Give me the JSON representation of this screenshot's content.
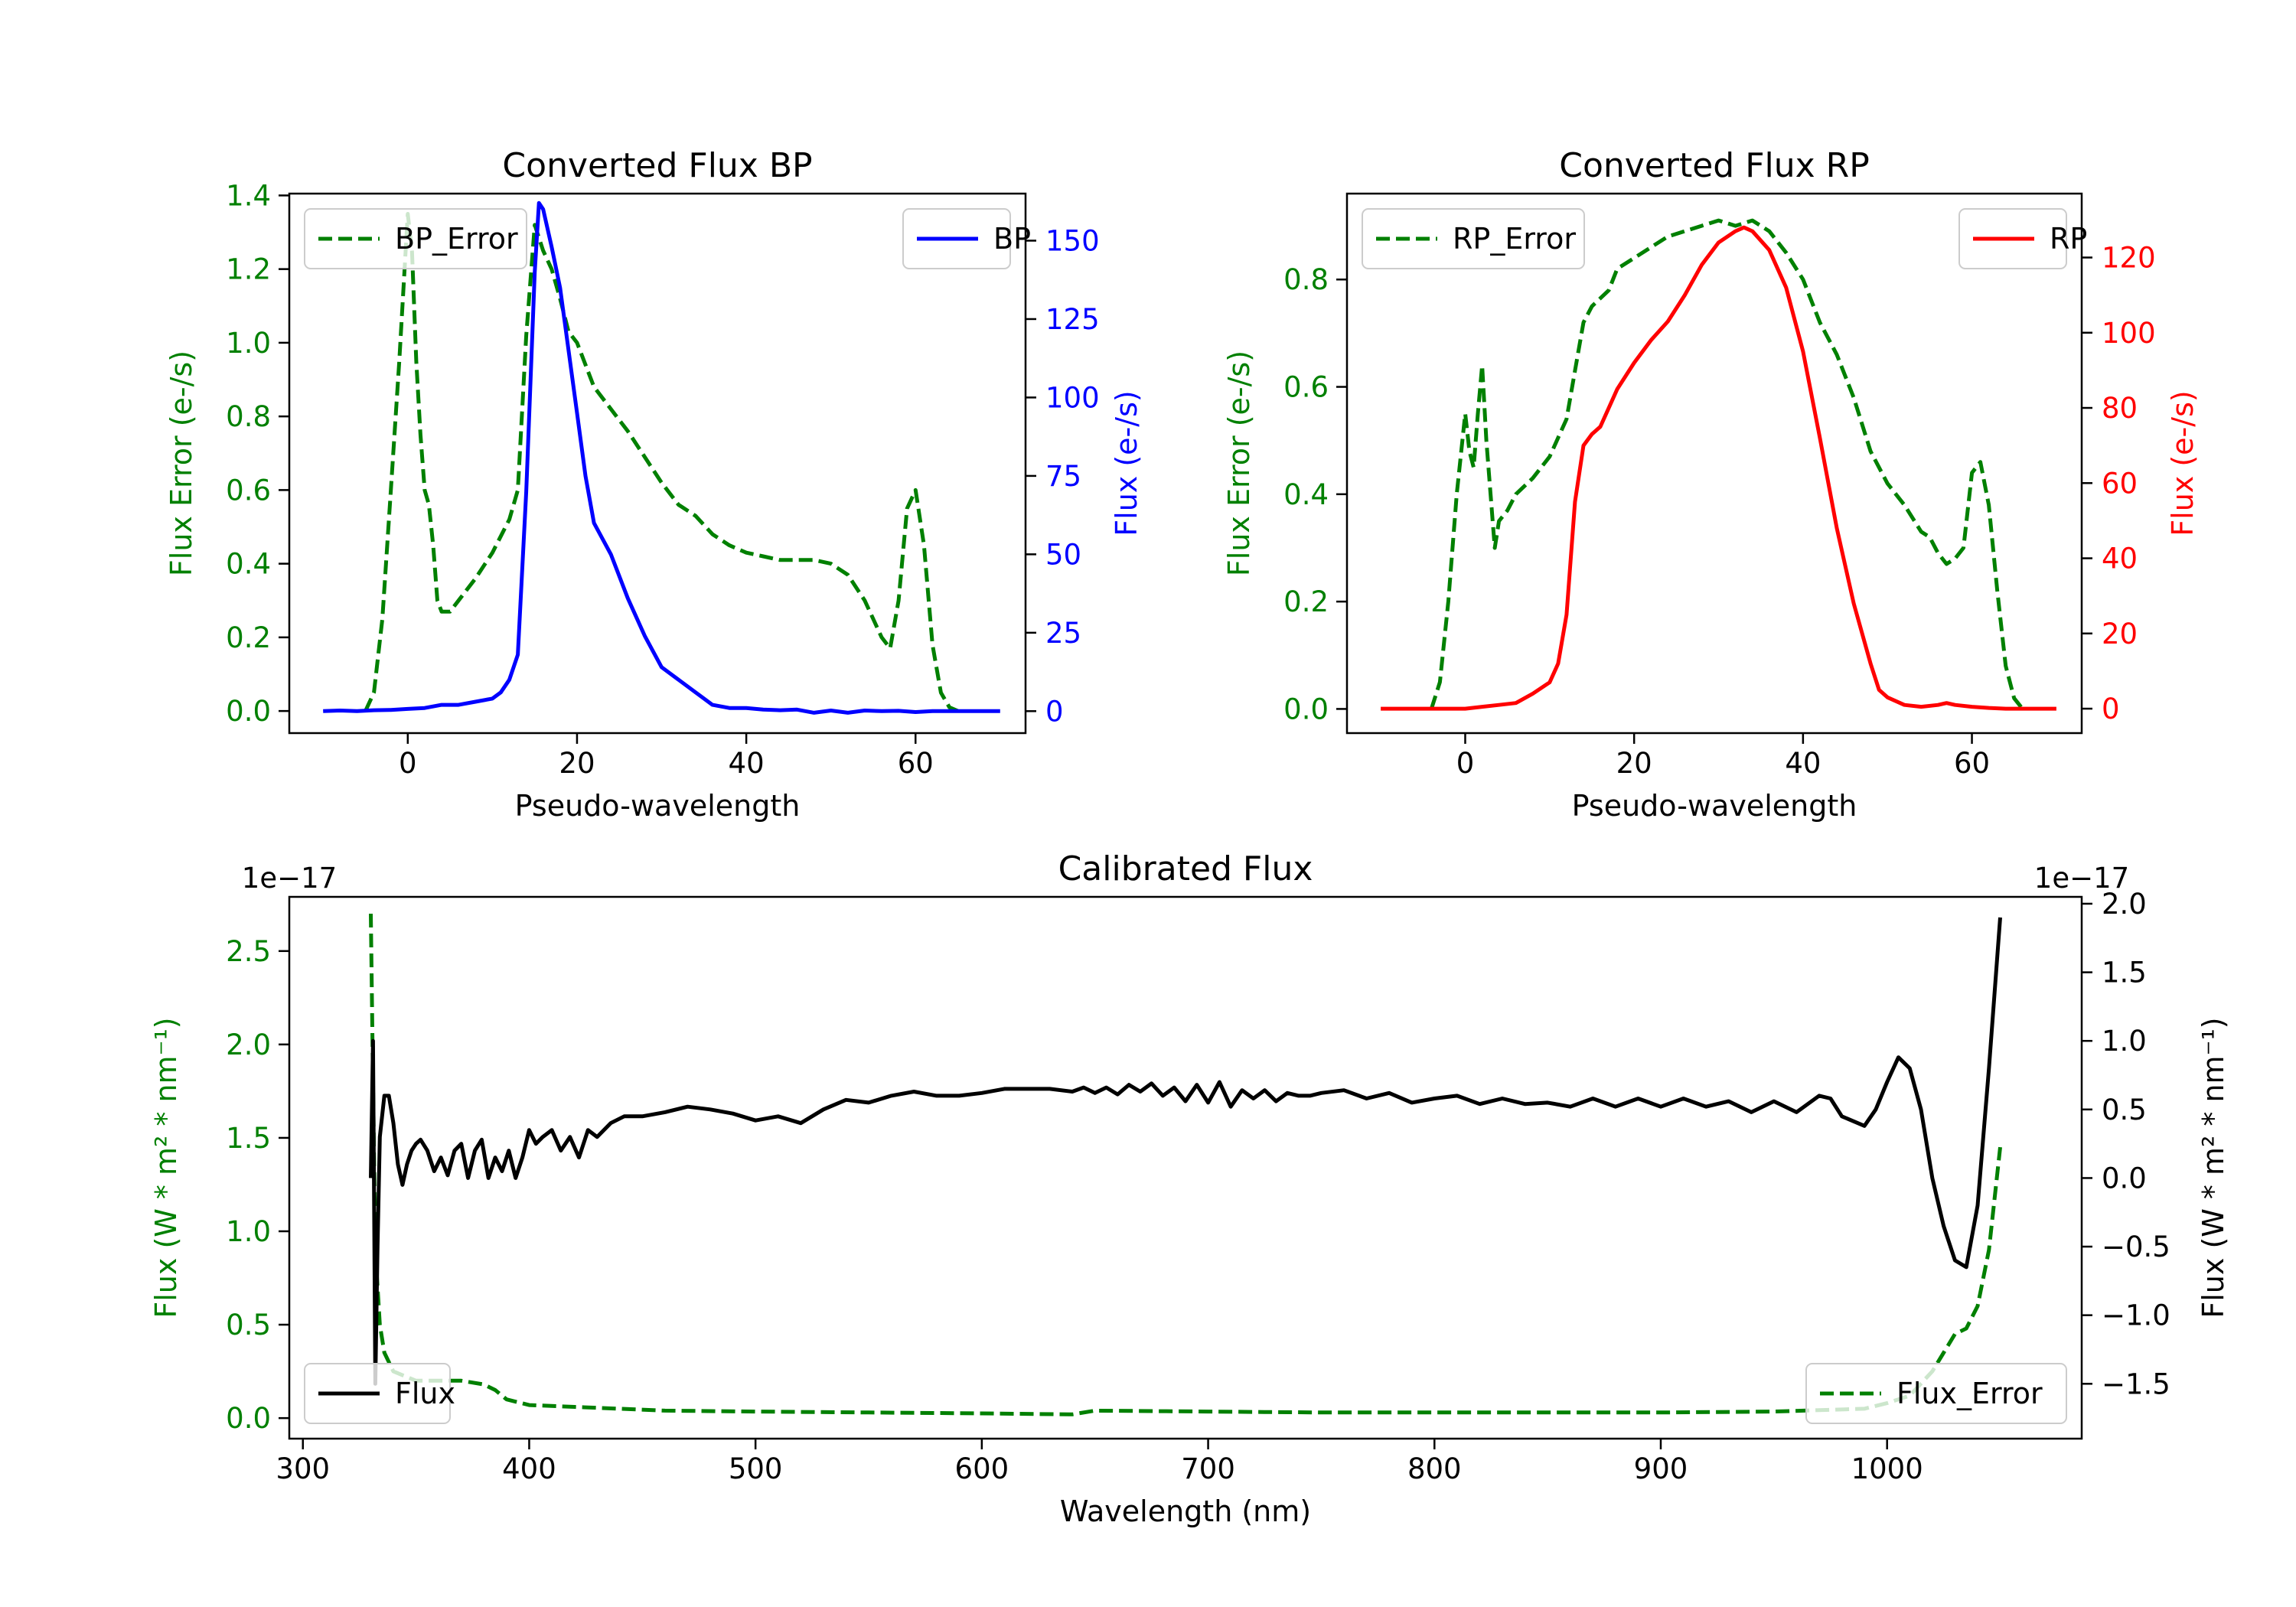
{
  "chart_data": [
    {
      "id": "bp",
      "type": "line",
      "title": "Converted Flux BP",
      "xlabel": "Pseudo-wavelength",
      "xlim": [
        -14,
        73
      ],
      "xticks": [
        0,
        20,
        40,
        60
      ],
      "left_axis": {
        "label": "Flux Error (e-/s)",
        "color": "#008000",
        "ylim": [
          -0.06,
          1.405
        ],
        "ticks": [
          0.0,
          0.2,
          0.4,
          0.6,
          0.8,
          1.0,
          1.2,
          1.4
        ],
        "tick_labels": [
          "0.0",
          "0.2",
          "0.4",
          "0.6",
          "0.8",
          "1.0",
          "1.2",
          "1.4"
        ]
      },
      "right_axis": {
        "label": "Flux (e-/s)",
        "color": "#0000ff",
        "ylim": [
          -7,
          165
        ],
        "ticks": [
          0,
          25,
          50,
          75,
          100,
          125,
          150
        ],
        "tick_labels": [
          "0",
          "25",
          "50",
          "75",
          "100",
          "125",
          "150"
        ]
      },
      "series": [
        {
          "name": "BP_Error",
          "axis": "left",
          "color": "#008000",
          "style": "dashed",
          "x": [
            -5,
            -4,
            -3,
            -2,
            -1,
            0,
            0.5,
            1,
            1.5,
            2,
            2.5,
            3,
            3.5,
            4,
            4.5,
            5,
            6,
            8,
            10,
            12,
            13,
            14,
            15,
            16,
            17,
            18,
            19,
            20,
            22,
            24,
            26,
            28,
            30,
            32,
            34,
            36,
            38,
            40,
            42,
            44,
            46,
            48,
            50,
            52,
            54,
            56,
            57,
            58,
            59,
            60,
            61,
            62,
            63,
            64,
            65
          ],
          "values": [
            0,
            0.05,
            0.25,
            0.6,
            0.95,
            1.35,
            1.25,
            0.95,
            0.75,
            0.6,
            0.56,
            0.45,
            0.3,
            0.27,
            0.27,
            0.27,
            0.3,
            0.36,
            0.43,
            0.52,
            0.6,
            1.02,
            1.32,
            1.25,
            1.2,
            1.12,
            1.03,
            1.0,
            0.88,
            0.82,
            0.76,
            0.69,
            0.62,
            0.56,
            0.53,
            0.48,
            0.45,
            0.43,
            0.42,
            0.41,
            0.41,
            0.41,
            0.4,
            0.37,
            0.3,
            0.2,
            0.17,
            0.3,
            0.55,
            0.6,
            0.45,
            0.18,
            0.05,
            0.01,
            0
          ]
        },
        {
          "name": "BP",
          "axis": "right",
          "color": "#0000ff",
          "style": "solid",
          "x": [
            -10,
            -8,
            -6,
            -4,
            -2,
            0,
            2,
            4,
            6,
            8,
            10,
            11,
            12,
            13,
            14,
            15,
            15.5,
            16,
            17,
            18,
            19,
            20,
            21,
            22,
            24,
            26,
            28,
            30,
            32,
            34,
            35,
            36,
            38,
            40,
            42,
            44,
            46,
            48,
            50,
            52,
            54,
            56,
            58,
            60,
            62,
            64,
            66,
            68,
            70
          ],
          "values": [
            0,
            0.2,
            0,
            0.3,
            0.4,
            0.7,
            1,
            2,
            2,
            3,
            4,
            6,
            10,
            18,
            70,
            140,
            162,
            160,
            148,
            135,
            115,
            95,
            75,
            60,
            50,
            36,
            24,
            14,
            10,
            6,
            4,
            2,
            1,
            1,
            0.5,
            0.3,
            0.5,
            -0.5,
            0.2,
            -0.5,
            0.2,
            0,
            0.1,
            -0.3,
            0,
            0,
            0,
            0,
            0
          ]
        }
      ],
      "legends": [
        {
          "label": "BP_Error",
          "placement": "upper-left"
        },
        {
          "label": "BP",
          "placement": "upper-right"
        }
      ]
    },
    {
      "id": "rp",
      "type": "line",
      "title": "Converted Flux RP",
      "xlabel": "Pseudo-wavelength",
      "xlim": [
        -14,
        73
      ],
      "xticks": [
        0,
        20,
        40,
        60
      ],
      "left_axis": {
        "label": "Flux Error (e-/s)",
        "color": "#008000",
        "ylim": [
          -0.045,
          0.96
        ],
        "ticks": [
          0.0,
          0.2,
          0.4,
          0.6,
          0.8
        ],
        "tick_labels": [
          "0.0",
          "0.2",
          "0.4",
          "0.6",
          "0.8"
        ]
      },
      "right_axis": {
        "label": "Flux (e-/s)",
        "color": "#ff0000",
        "ylim": [
          -6.5,
          137
        ],
        "ticks": [
          0,
          20,
          40,
          60,
          80,
          100,
          120
        ],
        "tick_labels": [
          "0",
          "20",
          "40",
          "60",
          "80",
          "100",
          "120"
        ]
      },
      "series": [
        {
          "name": "RP_Error",
          "axis": "left",
          "color": "#008000",
          "style": "dashed",
          "x": [
            -4,
            -3,
            -2,
            -1,
            0,
            0.5,
            1,
            1.5,
            2,
            2.5,
            3,
            3.5,
            4,
            5,
            6,
            8,
            10,
            12,
            13,
            14,
            15,
            17,
            18,
            20,
            22,
            24,
            26,
            28,
            30,
            32,
            34,
            36,
            38,
            40,
            42,
            44,
            46,
            48,
            50,
            52,
            54,
            55,
            56,
            57,
            58,
            59,
            60,
            61,
            62,
            63,
            64,
            65,
            66
          ],
          "values": [
            0,
            0.05,
            0.2,
            0.4,
            0.55,
            0.48,
            0.45,
            0.55,
            0.64,
            0.5,
            0.4,
            0.3,
            0.35,
            0.37,
            0.4,
            0.43,
            0.47,
            0.54,
            0.63,
            0.72,
            0.75,
            0.78,
            0.82,
            0.84,
            0.86,
            0.88,
            0.89,
            0.9,
            0.91,
            0.9,
            0.91,
            0.89,
            0.85,
            0.8,
            0.72,
            0.66,
            0.58,
            0.48,
            0.42,
            0.38,
            0.33,
            0.32,
            0.29,
            0.27,
            0.28,
            0.3,
            0.44,
            0.46,
            0.38,
            0.22,
            0.08,
            0.02,
            0
          ]
        },
        {
          "name": "RP",
          "axis": "right",
          "color": "#ff0000",
          "style": "solid",
          "x": [
            -10,
            -8,
            -6,
            -4,
            -2,
            0,
            2,
            4,
            6,
            8,
            10,
            11,
            12,
            13,
            14,
            15,
            16,
            17,
            18,
            20,
            22,
            24,
            26,
            28,
            30,
            32,
            33,
            34,
            36,
            38,
            40,
            42,
            44,
            46,
            48,
            49,
            50,
            52,
            54,
            56,
            57,
            58,
            60,
            62,
            64,
            66,
            68,
            70
          ],
          "values": [
            0,
            0,
            0,
            0,
            0,
            0,
            0.5,
            1,
            1.5,
            4,
            7,
            12,
            25,
            55,
            70,
            73,
            75,
            80,
            85,
            92,
            98,
            103,
            110,
            118,
            124,
            127,
            128,
            127,
            122,
            112,
            95,
            72,
            48,
            28,
            12,
            5,
            3,
            1,
            0.5,
            1,
            1.5,
            1,
            0.5,
            0.2,
            0,
            0,
            0,
            0
          ]
        }
      ],
      "legends": [
        {
          "label": "RP_Error",
          "placement": "upper-left"
        },
        {
          "label": "RP",
          "placement": "upper-right"
        }
      ]
    },
    {
      "id": "cal",
      "type": "line",
      "title": "Calibrated Flux",
      "xlabel": "Wavelength (nm)",
      "xlim": [
        294,
        1086
      ],
      "xticks": [
        300,
        400,
        500,
        600,
        700,
        800,
        900,
        1000
      ],
      "left_axis": {
        "label": "Flux (W * m² * nm⁻¹)",
        "color": "#008000",
        "ylim": [
          -0.11,
          2.79
        ],
        "ticks": [
          0.0,
          0.5,
          1.0,
          1.5,
          2.0,
          2.5
        ],
        "tick_labels": [
          "0.0",
          "0.5",
          "1.0",
          "1.5",
          "2.0",
          "2.5"
        ],
        "offset_text": "1e−17"
      },
      "right_axis": {
        "label": "Flux (W * m² * nm⁻¹)",
        "color": "#000000",
        "ylim": [
          -1.9,
          2.05
        ],
        "ticks": [
          -1.5,
          -1.0,
          -0.5,
          0.0,
          0.5,
          1.0,
          1.5,
          2.0
        ],
        "tick_labels": [
          "−1.5",
          "−1.0",
          "−0.5",
          "0.0",
          "0.5",
          "1.0",
          "1.5",
          "2.0"
        ],
        "offset_text": "1e−17"
      },
      "series": [
        {
          "name": "Flux_Error",
          "axis": "left",
          "color": "#008000",
          "style": "dashed",
          "x": [
            330,
            331,
            332,
            334,
            336,
            340,
            350,
            360,
            370,
            380,
            385,
            390,
            400,
            420,
            440,
            460,
            500,
            550,
            600,
            640,
            650,
            700,
            750,
            800,
            850,
            900,
            950,
            990,
            1000,
            1010,
            1020,
            1025,
            1030,
            1035,
            1040,
            1045,
            1050
          ],
          "values": [
            2.7,
            1.8,
            0.9,
            0.5,
            0.35,
            0.25,
            0.2,
            0.2,
            0.2,
            0.18,
            0.15,
            0.1,
            0.07,
            0.06,
            0.05,
            0.04,
            0.035,
            0.03,
            0.025,
            0.02,
            0.04,
            0.035,
            0.03,
            0.03,
            0.03,
            0.03,
            0.035,
            0.05,
            0.08,
            0.12,
            0.25,
            0.35,
            0.45,
            0.48,
            0.6,
            0.9,
            1.45
          ]
        },
        {
          "name": "Flux",
          "axis": "right",
          "color": "#000000",
          "style": "solid",
          "x": [
            330,
            331,
            332,
            333,
            334,
            336,
            338,
            340,
            342,
            344,
            346,
            348,
            350,
            352,
            355,
            358,
            361,
            364,
            367,
            370,
            373,
            376,
            379,
            382,
            385,
            388,
            391,
            394,
            397,
            400,
            403,
            406,
            410,
            414,
            418,
            422,
            426,
            430,
            436,
            442,
            450,
            460,
            470,
            480,
            490,
            500,
            510,
            520,
            530,
            540,
            550,
            560,
            570,
            580,
            590,
            600,
            610,
            620,
            630,
            640,
            645,
            650,
            655,
            660,
            665,
            670,
            675,
            680,
            685,
            690,
            695,
            700,
            705,
            710,
            715,
            720,
            725,
            730,
            735,
            740,
            745,
            750,
            760,
            770,
            780,
            790,
            800,
            810,
            820,
            830,
            840,
            850,
            860,
            870,
            880,
            890,
            900,
            910,
            920,
            930,
            940,
            950,
            960,
            970,
            975,
            980,
            990,
            995,
            1000,
            1005,
            1010,
            1015,
            1020,
            1025,
            1030,
            1035,
            1040,
            1045,
            1050
          ],
          "values": [
            0.0,
            1.0,
            -1.5,
            -0.5,
            0.3,
            0.6,
            0.6,
            0.4,
            0.1,
            -0.05,
            0.1,
            0.2,
            0.25,
            0.28,
            0.2,
            0.05,
            0.15,
            0.02,
            0.2,
            0.25,
            0.0,
            0.2,
            0.28,
            0.0,
            0.15,
            0.05,
            0.2,
            0.0,
            0.15,
            0.35,
            0.25,
            0.3,
            0.35,
            0.2,
            0.3,
            0.15,
            0.35,
            0.3,
            0.4,
            0.45,
            0.45,
            0.48,
            0.52,
            0.5,
            0.47,
            0.42,
            0.45,
            0.4,
            0.5,
            0.57,
            0.55,
            0.6,
            0.63,
            0.6,
            0.6,
            0.62,
            0.65,
            0.65,
            0.65,
            0.63,
            0.66,
            0.62,
            0.66,
            0.61,
            0.68,
            0.63,
            0.69,
            0.6,
            0.66,
            0.56,
            0.68,
            0.55,
            0.7,
            0.52,
            0.64,
            0.58,
            0.64,
            0.56,
            0.62,
            0.6,
            0.6,
            0.62,
            0.64,
            0.58,
            0.62,
            0.55,
            0.58,
            0.6,
            0.54,
            0.58,
            0.54,
            0.55,
            0.52,
            0.58,
            0.52,
            0.58,
            0.52,
            0.58,
            0.52,
            0.56,
            0.48,
            0.56,
            0.48,
            0.6,
            0.58,
            0.45,
            0.38,
            0.5,
            0.7,
            0.88,
            0.8,
            0.5,
            0.0,
            -0.35,
            -0.6,
            -0.65,
            -0.2,
            0.8,
            1.9
          ]
        }
      ],
      "legends": [
        {
          "label": "Flux",
          "placement": "lower-left"
        },
        {
          "label": "Flux_Error",
          "placement": "lower-right"
        }
      ]
    }
  ]
}
